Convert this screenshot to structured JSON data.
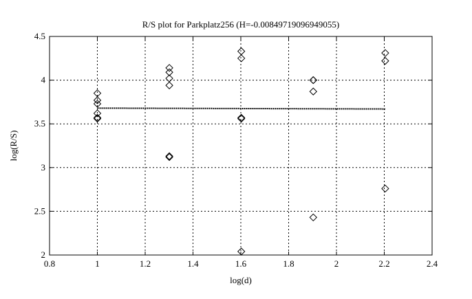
{
  "chart_data": {
    "type": "scatter",
    "title": "R/S plot for Parkplatz256 (H=-0.00849719096949055)",
    "xlabel": "log(d)",
    "ylabel": "log(R/S)",
    "xlim": [
      0.8,
      2.4
    ],
    "ylim": [
      2,
      4.5
    ],
    "xticks": [
      "0.8",
      "1",
      "1.2",
      "1.4",
      "1.6",
      "1.8",
      "2",
      "2.2",
      "2.4"
    ],
    "yticks": [
      "2",
      "2.5",
      "3",
      "3.5",
      "4",
      "4.5"
    ],
    "grid": true,
    "marker": "diamond",
    "points": [
      [
        1.0,
        3.85
      ],
      [
        1.0,
        3.77
      ],
      [
        1.0,
        3.73
      ],
      [
        1.0,
        3.62
      ],
      [
        1.0,
        3.57
      ],
      [
        1.0,
        3.56
      ],
      [
        1.301,
        4.14
      ],
      [
        1.301,
        4.09
      ],
      [
        1.301,
        4.02
      ],
      [
        1.301,
        3.94
      ],
      [
        1.301,
        3.13
      ],
      [
        1.301,
        3.12
      ],
      [
        1.602,
        4.33
      ],
      [
        1.602,
        4.25
      ],
      [
        1.602,
        3.57
      ],
      [
        1.602,
        3.56
      ],
      [
        1.602,
        2.04
      ],
      [
        1.903,
        4.0
      ],
      [
        1.903,
        4.0
      ],
      [
        1.903,
        3.87
      ],
      [
        1.903,
        2.43
      ],
      [
        2.204,
        4.31
      ],
      [
        2.204,
        4.22
      ],
      [
        2.204,
        2.76
      ]
    ],
    "fit_line": {
      "x": [
        1.0,
        2.204
      ],
      "y": [
        3.68,
        3.67
      ],
      "style": "dotted"
    }
  }
}
